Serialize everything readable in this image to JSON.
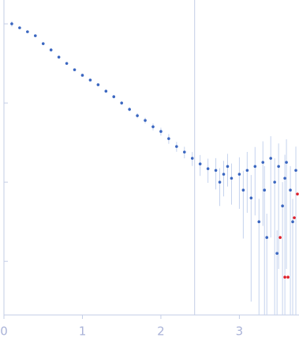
{
  "chart_data": {
    "type": "scatter",
    "log_y": true,
    "ytick_labels": false,
    "xlim": [
      0,
      3.76
    ],
    "ylim": [
      0.00021,
      2
    ],
    "xticks": [
      0,
      1,
      2,
      3
    ],
    "yticks": [
      1,
      0.1,
      0.01,
      0.001
    ],
    "vline": 2.43,
    "axis_color": "#c3cde6",
    "error_color": "#c5d3ee",
    "series": [
      {
        "color": "#3a66c0",
        "x": [
          0.1,
          0.2,
          0.3,
          0.4,
          0.5,
          0.6,
          0.7,
          0.8,
          0.9,
          1.0,
          1.1,
          1.2,
          1.3,
          1.4,
          1.5,
          1.6,
          1.7,
          1.8,
          1.9,
          2.0,
          2.1,
          2.2,
          2.3,
          2.4,
          2.5,
          2.6,
          2.7,
          2.75,
          2.8,
          2.85,
          2.9,
          3.0,
          3.05,
          3.1,
          3.15,
          3.2,
          3.25,
          3.3,
          3.32,
          3.35,
          3.4,
          3.45,
          3.48,
          3.5,
          3.55,
          3.58,
          3.6,
          3.65,
          3.68,
          3.72
        ],
        "values": [
          1.0,
          0.891,
          0.794,
          0.708,
          0.562,
          0.468,
          0.38,
          0.316,
          0.263,
          0.224,
          0.195,
          0.17,
          0.141,
          0.12,
          0.1,
          0.0832,
          0.0692,
          0.0603,
          0.0501,
          0.0437,
          0.0355,
          0.0282,
          0.024,
          0.02,
          0.017,
          0.0148,
          0.0141,
          0.01,
          0.0126,
          0.0158,
          0.0112,
          0.0126,
          0.00794,
          0.0141,
          0.00631,
          0.0158,
          0.00316,
          0.0178,
          0.00794,
          0.002,
          0.02,
          0.01,
          0.00126,
          0.0158,
          0.00501,
          0.0112,
          0.0178,
          0.00794,
          0.00316,
          0.0141
        ],
        "errors": [
          0.08,
          0.02,
          0.02,
          0.02,
          0.015,
          0.012,
          0.01,
          0.01,
          0.008,
          0.008,
          0.008,
          0.007,
          0.006,
          0.006,
          0.005,
          0.005,
          0.005,
          0.005,
          0.005,
          0.005,
          0.005,
          0.004,
          0.004,
          0.004,
          0.005,
          0.005,
          0.006,
          0.005,
          0.006,
          0.007,
          0.006,
          0.008,
          0.006,
          0.01,
          0.006,
          0.012,
          0.003,
          0.015,
          0.008,
          0.002,
          0.018,
          0.01,
          0.0012,
          0.015,
          0.005,
          0.011,
          0.017,
          0.008,
          0.003,
          0.014
        ]
      },
      {
        "color": "#e0202a",
        "x": [
          3.52,
          3.58,
          3.62,
          3.7,
          3.74
        ],
        "values": [
          0.002,
          0.000631,
          0.000631,
          0.00355,
          0.00708
        ]
      }
    ]
  }
}
